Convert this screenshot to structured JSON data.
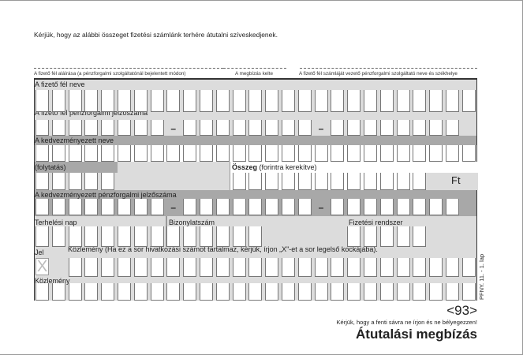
{
  "intro": "Kérjük, hogy az alábbi összeget fizetési számlánk terhére átutalni szíveskedjenek.",
  "signature_labels": [
    "A fizető fél aláírása (a pénzforgalmi szolgáltatónál bejelentett módon)",
    "A megbízás kelte",
    "A fizető fél számláját vezető pénzforgalmi szolgáltató neve és székhelye"
  ],
  "fields": {
    "payer_name": "A fizető fél neve",
    "payer_account": "A fizető fél pénzforgalmi jelzőszáma",
    "beneficiary_name": "A kedvezményezett neve",
    "continuation": "(folytatás)",
    "amount_bold": "Összeg",
    "amount_rest": " (forintra kerekítve)",
    "currency": "Ft",
    "beneficiary_account": "A kedvezményezett pénzforgalmi jelzőszáma",
    "debit_day": "Terhelési nap",
    "document_number": "Bizonylatszám",
    "payment_system": "Fizetési rendszer",
    "mark": "Jel",
    "mark_value": "X",
    "remittance_note": "Közlemény (Ha ez a sor hivatkozási számot tartalmaz, kérjük, írjon „X\"-et a sor legelső kockájába).",
    "remittance": "Közlemény",
    "dash": "–"
  },
  "form_code": "PFNY. 11. - 1. lap",
  "footer": {
    "code": "<93>",
    "note": "Kérjük, hogy a fenti sávra ne írjon és ne bélyegezzen!",
    "title": "Átutalási megbízás"
  }
}
